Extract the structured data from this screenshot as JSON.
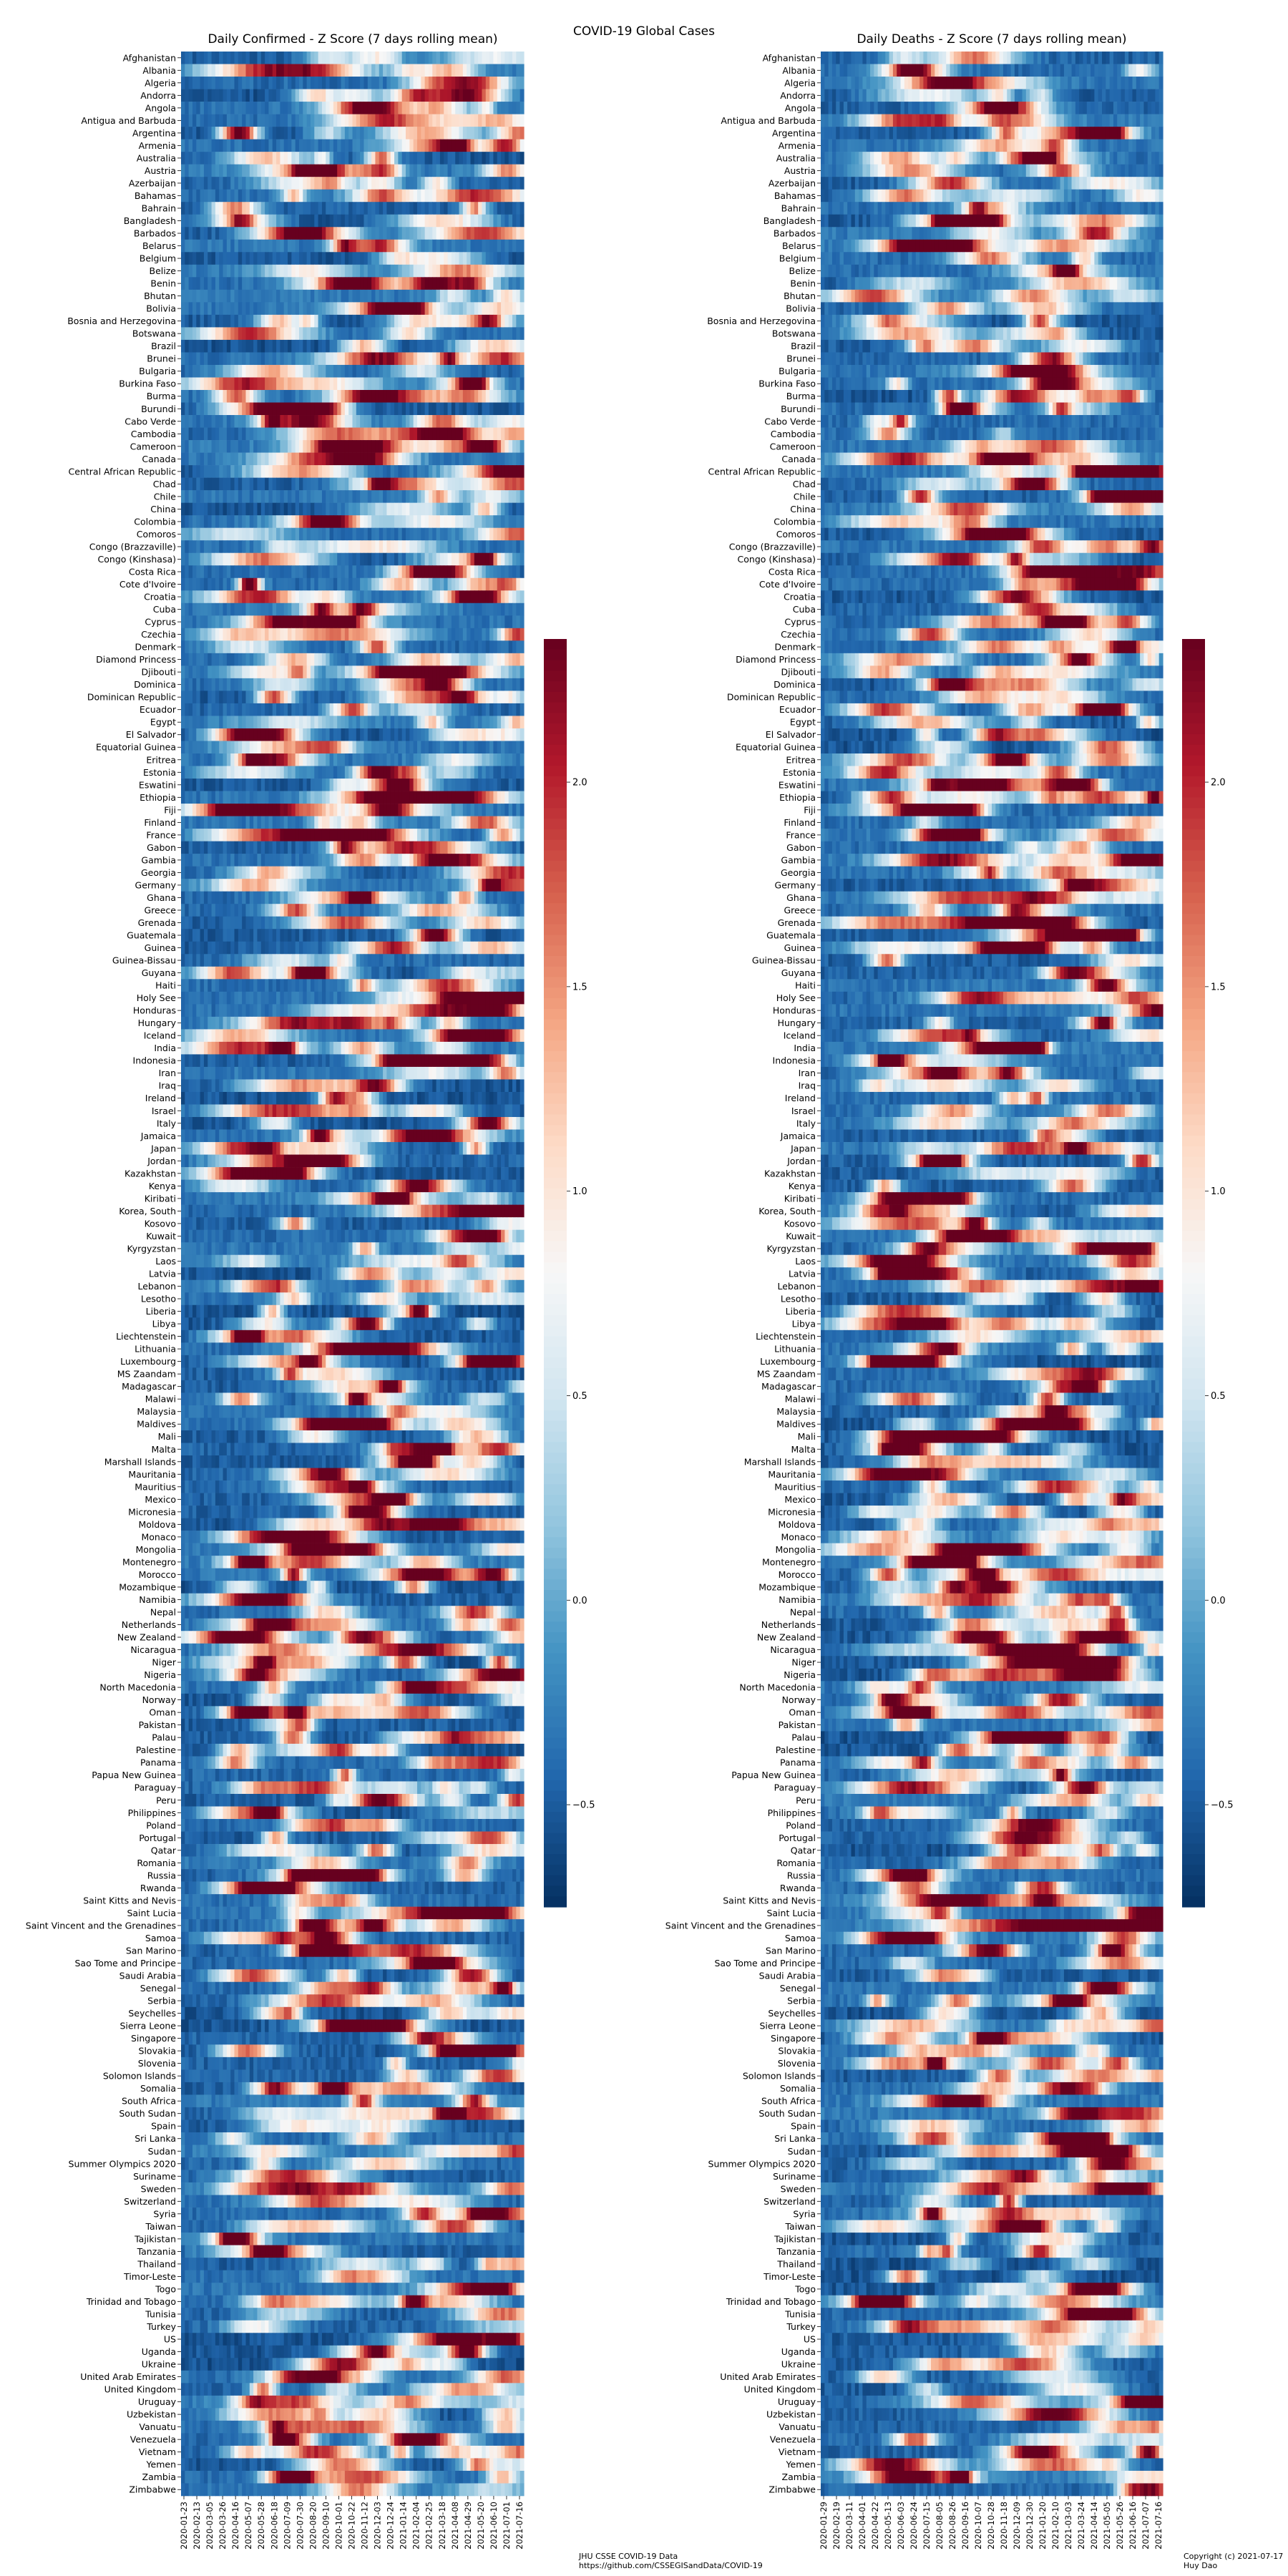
{
  "suptitle": "COVID-19 Global Cases",
  "countries": [
    "Afghanistan",
    "Albania",
    "Algeria",
    "Andorra",
    "Angola",
    "Antigua and Barbuda",
    "Argentina",
    "Armenia",
    "Australia",
    "Austria",
    "Azerbaijan",
    "Bahamas",
    "Bahrain",
    "Bangladesh",
    "Barbados",
    "Belarus",
    "Belgium",
    "Belize",
    "Benin",
    "Bhutan",
    "Bolivia",
    "Bosnia and Herzegovina",
    "Botswana",
    "Brazil",
    "Brunei",
    "Bulgaria",
    "Burkina Faso",
    "Burma",
    "Burundi",
    "Cabo Verde",
    "Cambodia",
    "Cameroon",
    "Canada",
    "Central African Republic",
    "Chad",
    "Chile",
    "China",
    "Colombia",
    "Comoros",
    "Congo (Brazzaville)",
    "Congo (Kinshasa)",
    "Costa Rica",
    "Cote d'Ivoire",
    "Croatia",
    "Cuba",
    "Cyprus",
    "Czechia",
    "Denmark",
    "Diamond Princess",
    "Djibouti",
    "Dominica",
    "Dominican Republic",
    "Ecuador",
    "Egypt",
    "El Salvador",
    "Equatorial Guinea",
    "Eritrea",
    "Estonia",
    "Eswatini",
    "Ethiopia",
    "Fiji",
    "Finland",
    "France",
    "Gabon",
    "Gambia",
    "Georgia",
    "Germany",
    "Ghana",
    "Greece",
    "Grenada",
    "Guatemala",
    "Guinea",
    "Guinea-Bissau",
    "Guyana",
    "Haiti",
    "Holy See",
    "Honduras",
    "Hungary",
    "Iceland",
    "India",
    "Indonesia",
    "Iran",
    "Iraq",
    "Ireland",
    "Israel",
    "Italy",
    "Jamaica",
    "Japan",
    "Jordan",
    "Kazakhstan",
    "Kenya",
    "Kiribati",
    "Korea, South",
    "Kosovo",
    "Kuwait",
    "Kyrgyzstan",
    "Laos",
    "Latvia",
    "Lebanon",
    "Lesotho",
    "Liberia",
    "Libya",
    "Liechtenstein",
    "Lithuania",
    "Luxembourg",
    "MS Zaandam",
    "Madagascar",
    "Malawi",
    "Malaysia",
    "Maldives",
    "Mali",
    "Malta",
    "Marshall Islands",
    "Mauritania",
    "Mauritius",
    "Mexico",
    "Micronesia",
    "Moldova",
    "Monaco",
    "Mongolia",
    "Montenegro",
    "Morocco",
    "Mozambique",
    "Namibia",
    "Nepal",
    "Netherlands",
    "New Zealand",
    "Nicaragua",
    "Niger",
    "Nigeria",
    "North Macedonia",
    "Norway",
    "Oman",
    "Pakistan",
    "Palau",
    "Palestine",
    "Panama",
    "Papua New Guinea",
    "Paraguay",
    "Peru",
    "Philippines",
    "Poland",
    "Portugal",
    "Qatar",
    "Romania",
    "Russia",
    "Rwanda",
    "Saint Kitts and Nevis",
    "Saint Lucia",
    "Saint Vincent and the Grenadines",
    "Samoa",
    "San Marino",
    "Sao Tome and Principe",
    "Saudi Arabia",
    "Senegal",
    "Serbia",
    "Seychelles",
    "Sierra Leone",
    "Singapore",
    "Slovakia",
    "Slovenia",
    "Solomon Islands",
    "Somalia",
    "South Africa",
    "South Sudan",
    "Spain",
    "Sri Lanka",
    "Sudan",
    "Summer Olympics 2020",
    "Suriname",
    "Sweden",
    "Switzerland",
    "Syria",
    "Taiwan",
    "Tajikistan",
    "Tanzania",
    "Thailand",
    "Timor-Leste",
    "Togo",
    "Trinidad and Tobago",
    "Tunisia",
    "Turkey",
    "US",
    "Uganda",
    "Ukraine",
    "United Arab Emirates",
    "United Kingdom",
    "Uruguay",
    "Uzbekistan",
    "Vanuatu",
    "Venezuela",
    "Vietnam",
    "Yemen",
    "Zambia",
    "Zimbabwe"
  ],
  "chart_data": [
    {
      "type": "heatmap",
      "title": "Daily Confirmed - Z Score (7 days rolling mean)",
      "x_tick_labels": [
        "2020-01-23",
        "2020-02-13",
        "2020-03-05",
        "2020-03-26",
        "2020-04-16",
        "2020-05-07",
        "2020-05-28",
        "2020-06-18",
        "2020-07-09",
        "2020-07-30",
        "2020-08-20",
        "2020-09-10",
        "2020-10-01",
        "2020-10-22",
        "2020-11-12",
        "2020-12-03",
        "2020-12-24",
        "2021-01-14",
        "2021-02-04",
        "2021-02-25",
        "2021-03-18",
        "2021-04-08",
        "2021-04-29",
        "2021-05-20",
        "2021-06-10",
        "2021-07-01",
        "2021-07-16"
      ],
      "x_range": [
        "2020-01-23",
        "2021-07-16"
      ],
      "y_labels_ref": "countries",
      "colormap": "RdBu_r",
      "color_range": [
        -0.75,
        2.35
      ],
      "colorbar_ticks": [
        "−0.5",
        "0.0",
        "0.5",
        "1.0",
        "1.5",
        "2.0"
      ],
      "colorbar_values": [
        -0.5,
        0.0,
        0.5,
        1.0,
        1.5,
        2.0
      ]
    },
    {
      "type": "heatmap",
      "title": "Daily Deaths - Z Score (7 days rolling mean)",
      "x_tick_labels": [
        "2020-01-29",
        "2020-02-19",
        "2020-03-11",
        "2020-04-01",
        "2020-04-22",
        "2020-05-13",
        "2020-06-03",
        "2020-06-24",
        "2020-07-15",
        "2020-08-05",
        "2020-08-26",
        "2020-09-16",
        "2020-10-07",
        "2020-10-28",
        "2020-11-18",
        "2020-12-09",
        "2020-12-30",
        "2021-01-20",
        "2021-02-10",
        "2021-03-03",
        "2021-03-24",
        "2021-04-14",
        "2021-05-05",
        "2021-05-26",
        "2021-06-16",
        "2021-07-07",
        "2021-07-16"
      ],
      "x_range": [
        "2020-01-29",
        "2021-07-16"
      ],
      "y_labels_ref": "countries",
      "colormap": "RdBu_r",
      "color_range": [
        -0.75,
        2.35
      ],
      "colorbar_ticks": [
        "−0.5",
        "0.0",
        "0.5",
        "1.0",
        "1.5",
        "2.0"
      ],
      "colorbar_values": [
        -0.5,
        0.0,
        0.5,
        1.0,
        1.5,
        2.0
      ]
    }
  ],
  "footer": {
    "source_line1": "JHU CSSE COVID-19 Data",
    "source_line2": "https://github.com/CSSEGISandData/COVID-19",
    "copyright_line1": "Copyright (c) 2021-07-17",
    "copyright_line2": "Huy Dao"
  }
}
